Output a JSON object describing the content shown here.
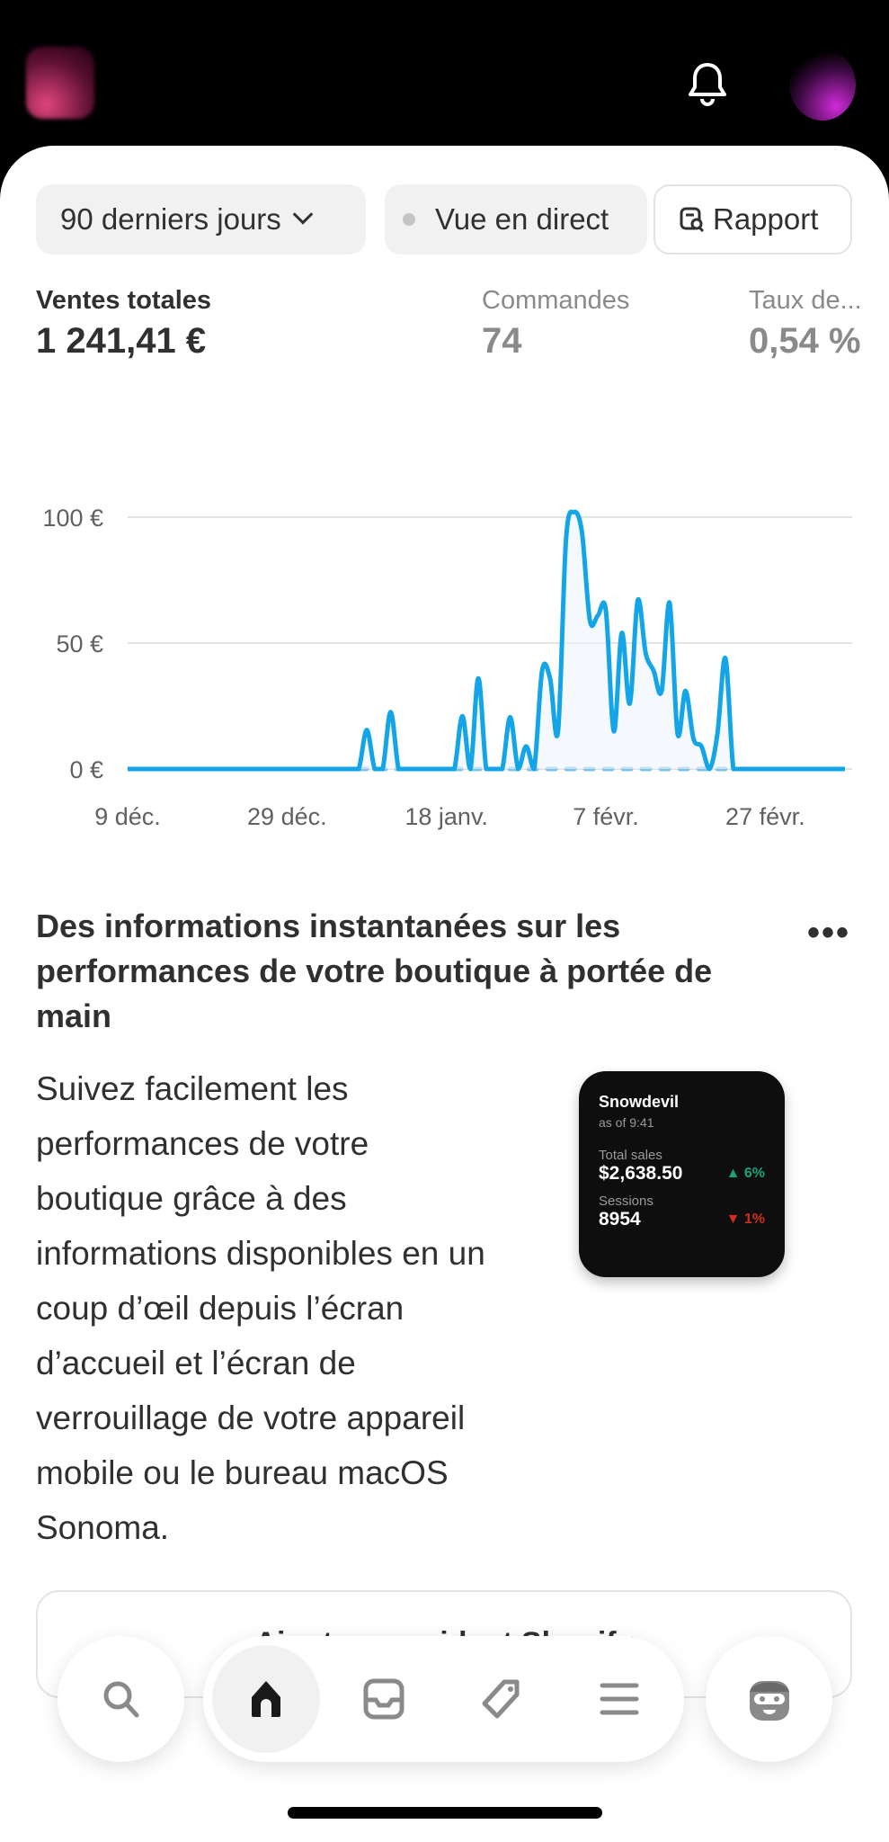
{
  "header": {
    "bell_icon": "bell-icon",
    "avatar": "user-avatar"
  },
  "toolbar": {
    "date_range": "90 derniers jours",
    "live_view": "Vue en direct",
    "report": "Rapport"
  },
  "stats": [
    {
      "label": "Ventes totales",
      "value": "1 241,41 €"
    },
    {
      "label": "Commandes",
      "value": "74"
    },
    {
      "label": "Taux de...",
      "value": "0,54 %"
    }
  ],
  "chart_data": {
    "type": "line",
    "xlabel": "",
    "ylabel": "",
    "ylim": [
      0,
      100
    ],
    "y_ticks": [
      "0 €",
      "50 €",
      "100 €"
    ],
    "y_tick_values": [
      0,
      50,
      100
    ],
    "x_ticks": [
      "9 déc.",
      "29 déc.",
      "18 janv.",
      "7 févr.",
      "27 févr."
    ],
    "x_tick_dates": [
      "12-09",
      "12-29",
      "01-18",
      "02-07",
      "02-27"
    ],
    "grid": true,
    "line_color": "#13a5e8",
    "x": [
      "12-09",
      "12-10",
      "12-11",
      "12-12",
      "12-13",
      "12-14",
      "12-15",
      "12-16",
      "12-17",
      "12-18",
      "12-19",
      "12-20",
      "12-21",
      "12-22",
      "12-23",
      "12-24",
      "12-25",
      "12-26",
      "12-27",
      "12-28",
      "12-29",
      "12-30",
      "12-31",
      "01-01",
      "01-02",
      "01-03",
      "01-04",
      "01-05",
      "01-06",
      "01-07",
      "01-08",
      "01-09",
      "01-10",
      "01-11",
      "01-12",
      "01-13",
      "01-14",
      "01-15",
      "01-16",
      "01-17",
      "01-18",
      "01-19",
      "01-20",
      "01-21",
      "01-22",
      "01-23",
      "01-24",
      "01-25",
      "01-26",
      "01-27",
      "01-28",
      "01-29",
      "01-30",
      "01-31",
      "02-01",
      "02-02",
      "02-03",
      "02-04",
      "02-05",
      "02-06",
      "02-07",
      "02-08",
      "02-09",
      "02-10",
      "02-11",
      "02-12",
      "02-13",
      "02-14",
      "02-15",
      "02-16",
      "02-17",
      "02-18",
      "02-19",
      "02-20",
      "02-21",
      "02-22",
      "02-23",
      "02-24",
      "02-25",
      "02-26",
      "02-27",
      "02-28",
      "02-29",
      "03-01",
      "03-02",
      "03-03",
      "03-04",
      "03-05",
      "03-06",
      "03-07",
      "03-08"
    ],
    "series": [
      {
        "values": [
          0,
          0,
          0,
          0,
          0,
          0,
          0,
          0,
          0,
          0,
          0,
          0,
          0,
          0,
          0,
          0,
          0,
          0,
          0,
          0,
          0,
          0,
          0,
          0,
          0,
          0,
          0,
          0,
          0,
          0,
          15.5,
          0,
          0,
          22.6,
          0,
          0,
          0,
          0,
          0,
          0,
          0,
          0,
          21,
          0,
          36,
          0,
          0,
          0,
          20.6,
          0,
          9,
          0,
          39,
          36,
          15,
          91,
          102,
          94,
          59,
          61,
          63,
          15,
          54,
          26,
          67,
          46,
          39,
          31,
          66,
          14,
          31,
          12,
          9,
          0,
          14,
          44,
          0,
          0,
          0,
          0,
          0,
          0,
          0,
          0,
          0,
          0,
          0,
          0,
          0,
          0,
          0
        ]
      },
      {
        "style": "dotted",
        "values_from": "01-07",
        "values_to": "02-22",
        "value": 0
      }
    ]
  },
  "insight": {
    "title": "Des informations instantanées sur les performances de votre boutique à portée de main",
    "body": "Suivez facilement les performances de votre boutique grâce à des informations disponibles en un coup d’œil depuis l’écran d’accueil et l’écran de verrouillage de votre appareil mobile ou le bureau macOS Sonoma.",
    "more_icon": "more-horizontal-icon",
    "widget": {
      "store": "Snowdevil",
      "as_of": "as of 9:41",
      "sales_label": "Total sales",
      "sales_value": "$2,638.50",
      "sales_change": "▲ 6%",
      "sessions_label": "Sessions",
      "sessions_value": "8954",
      "sessions_change": "▼ 1%",
      "up_color": "#1aa37a",
      "down_color": "#d02d1b"
    }
  },
  "card": {
    "label": "Ajouter un widget Shopify"
  },
  "nav": {
    "items": [
      "search-icon",
      "home-icon",
      "orders-inbox-icon",
      "products-tag-icon",
      "menu-icon",
      "sidekick-icon"
    ],
    "active": "home-icon"
  }
}
